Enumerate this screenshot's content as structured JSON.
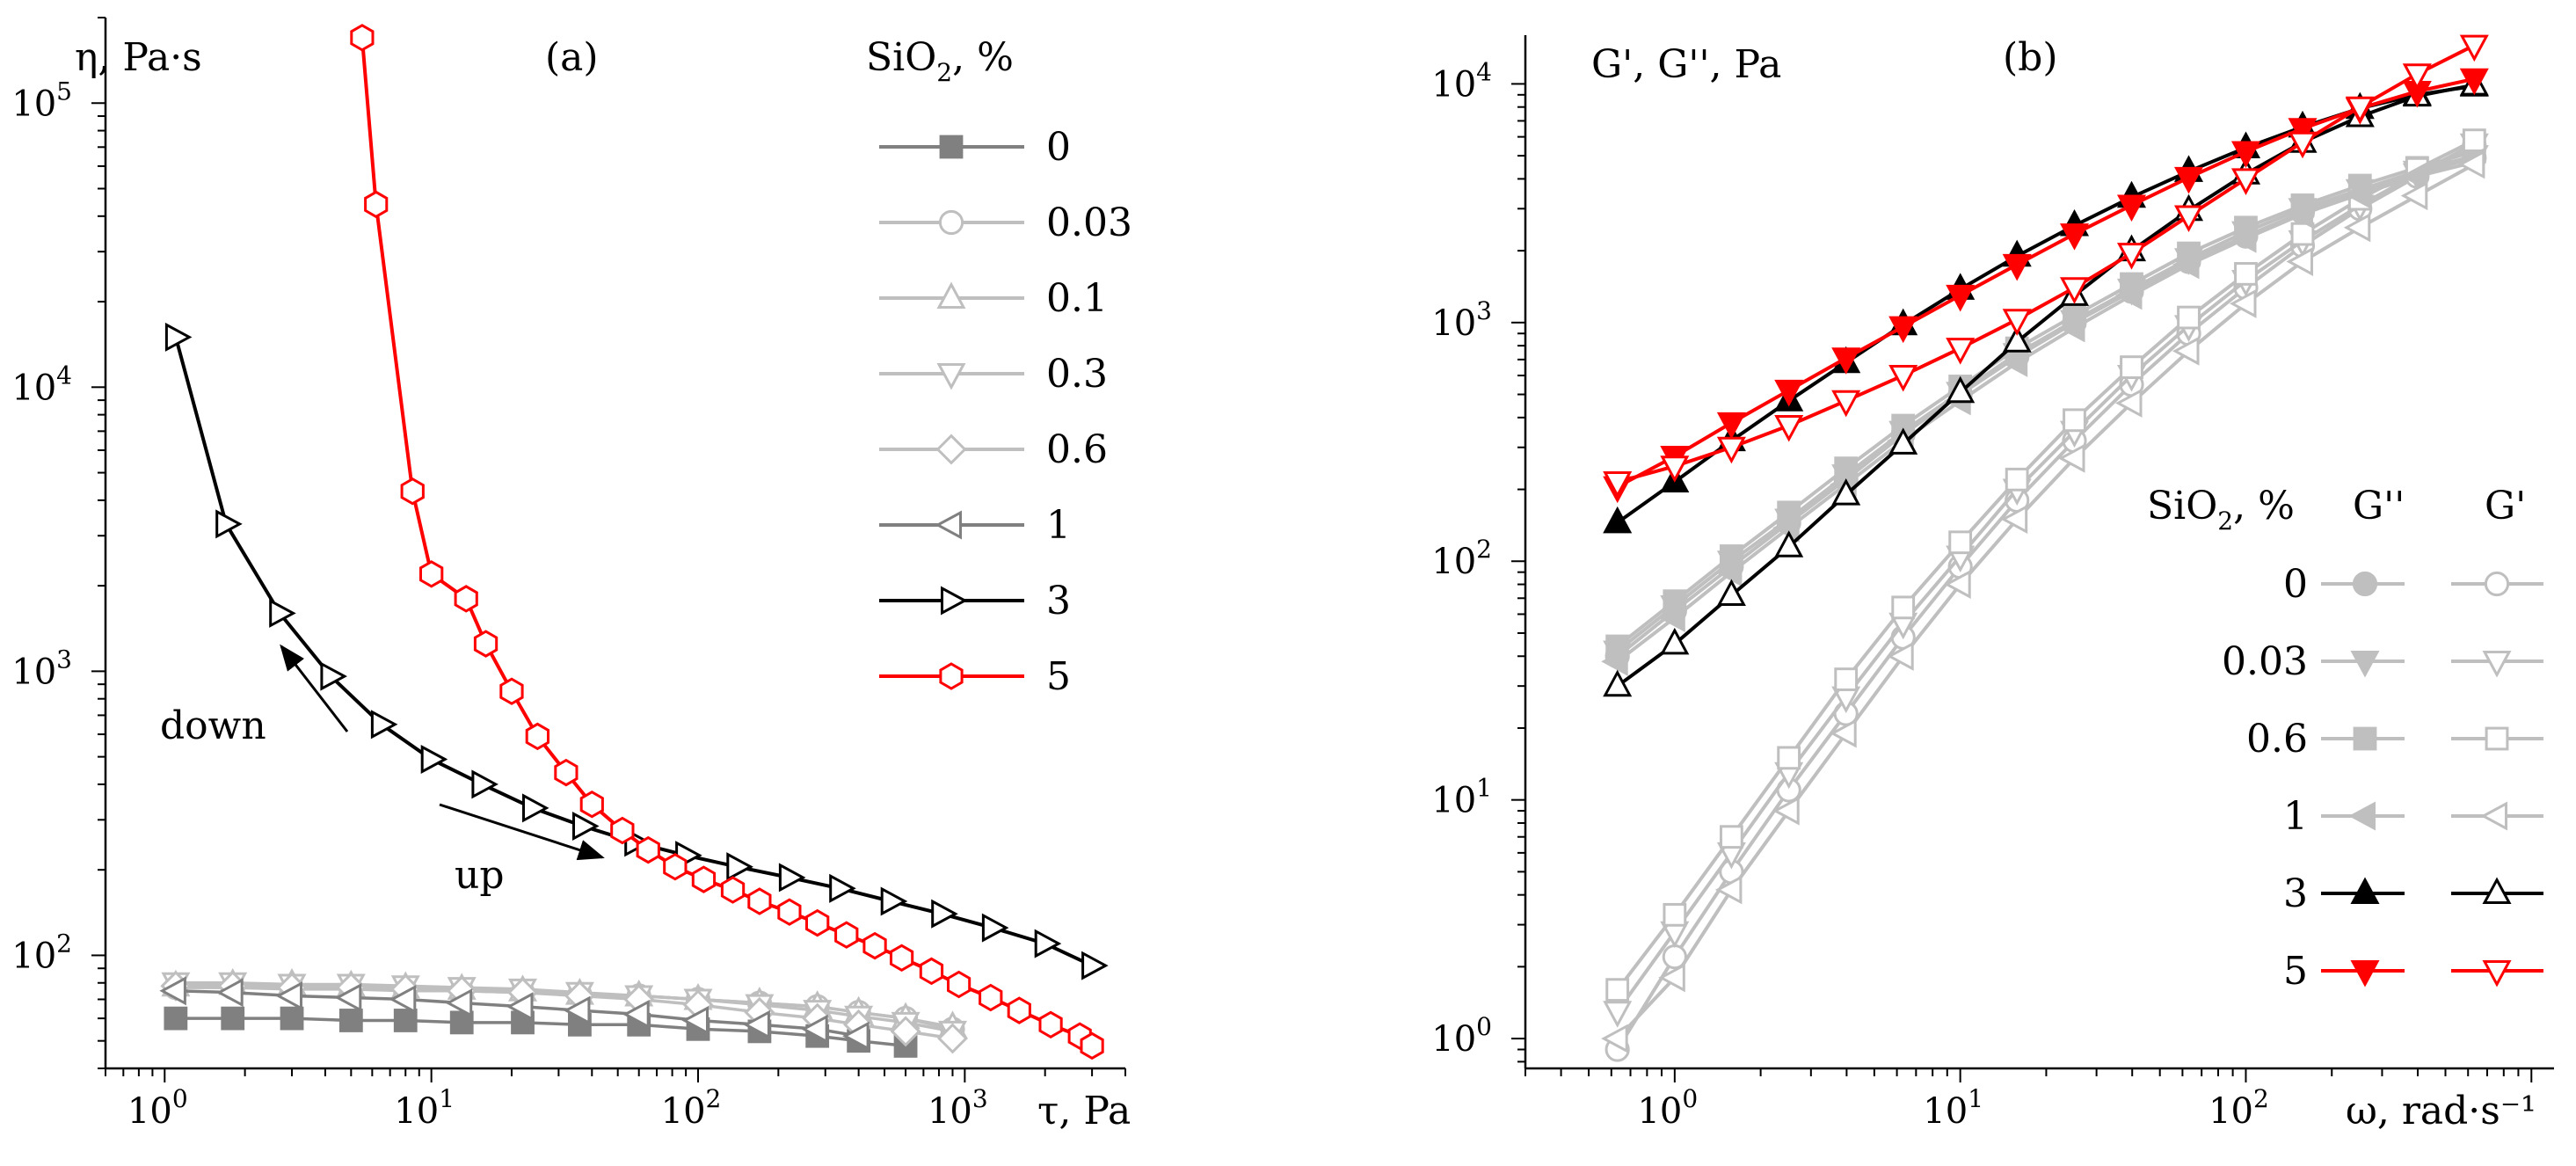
{
  "figure": {
    "panel_a_label": "(a)",
    "panel_b_label": "(b)"
  },
  "chart_data": [
    {
      "panel": "(a)",
      "type": "line",
      "xscale": "log",
      "yscale": "log",
      "xlabel": "τ, Pa",
      "ylabel": "η, Pa·s",
      "xlim": [
        0.6,
        4000
      ],
      "ylim": [
        40,
        200000
      ],
      "xticks": [
        {
          "value": 1,
          "base": "10",
          "exp": "0"
        },
        {
          "value": 10,
          "base": "10",
          "exp": "1"
        },
        {
          "value": 100,
          "base": "10",
          "exp": "2"
        },
        {
          "value": 1000,
          "base": "10",
          "exp": "3"
        }
      ],
      "yticks": [
        {
          "value": 100,
          "base": "10",
          "exp": "2"
        },
        {
          "value": 1000,
          "base": "10",
          "exp": "3"
        },
        {
          "value": 10000,
          "base": "10",
          "exp": "4"
        },
        {
          "value": 100000,
          "base": "10",
          "exp": "5"
        }
      ],
      "legend_title": {
        "main": "SiO",
        "sub": "2",
        "rest": ", %"
      },
      "annotations": {
        "down": "down",
        "up": "up"
      },
      "series": [
        {
          "name": "0",
          "color": "#808080",
          "marker": "square",
          "filled": true,
          "x": [
            1.1,
            1.8,
            3,
            5,
            8,
            13,
            22,
            36,
            60,
            100,
            170,
            280,
            400,
            600
          ],
          "y": [
            60,
            60,
            60,
            59,
            59,
            58,
            58,
            57,
            57,
            55,
            54,
            52,
            50,
            48
          ]
        },
        {
          "name": "0.03",
          "color": "#bfbfbf",
          "marker": "circle",
          "filled": false,
          "x": [
            1.1,
            1.8,
            3,
            5,
            8,
            13,
            22,
            36,
            60,
            100,
            170,
            280,
            400,
            600,
            900
          ],
          "y": [
            77,
            77,
            76,
            76,
            75,
            75,
            74,
            73,
            72,
            70,
            68,
            66,
            63,
            60,
            55
          ]
        },
        {
          "name": "0.1",
          "color": "#bfbfbf",
          "marker": "triangle-up",
          "filled": false,
          "x": [
            1.1,
            1.8,
            3,
            5,
            8,
            13,
            22,
            36,
            60,
            100,
            170,
            280,
            400,
            600,
            900
          ],
          "y": [
            78,
            79,
            79,
            78,
            77,
            76,
            75,
            73,
            72,
            70,
            68,
            66,
            63,
            60,
            56
          ]
        },
        {
          "name": "0.3",
          "color": "#bfbfbf",
          "marker": "triangle-down",
          "filled": false,
          "x": [
            1.1,
            1.8,
            3,
            5,
            8,
            13,
            22,
            36,
            60,
            100,
            170,
            280,
            400,
            600,
            900
          ],
          "y": [
            80,
            80,
            79,
            79,
            78,
            77,
            76,
            74,
            72,
            70,
            67,
            64,
            61,
            58,
            54
          ]
        },
        {
          "name": "0.6",
          "color": "#bfbfbf",
          "marker": "diamond",
          "filled": false,
          "x": [
            1.1,
            1.8,
            3,
            5,
            8,
            13,
            22,
            36,
            60,
            100,
            170,
            280,
            400,
            600,
            900
          ],
          "y": [
            78,
            78,
            77,
            77,
            76,
            75,
            74,
            72,
            70,
            67,
            63,
            60,
            57,
            54,
            51
          ]
        },
        {
          "name": "1",
          "color": "#808080",
          "marker": "triangle-left",
          "filled": false,
          "x": [
            1.1,
            1.8,
            3,
            5,
            8,
            13,
            22,
            36,
            60,
            100,
            170,
            280,
            400
          ],
          "y": [
            75,
            74,
            72,
            71,
            70,
            68,
            66,
            64,
            62,
            59,
            57,
            55,
            52
          ]
        },
        {
          "name": "3",
          "color": "#000000",
          "marker": "triangle-right",
          "filled": false,
          "x": [
            1.1,
            1.7,
            2.7,
            4.2,
            6.5,
            10,
            15.5,
            24,
            37,
            58,
            90,
            140,
            220,
            340,
            530,
            820,
            1270,
            2000,
            3000
          ],
          "y": [
            15000,
            3300,
            1600,
            960,
            650,
            490,
            400,
            330,
            285,
            250,
            225,
            205,
            188,
            172,
            155,
            140,
            125,
            110,
            92
          ]
        },
        {
          "name": "5",
          "color": "#ff0000",
          "marker": "hexagon",
          "filled": false,
          "x": [
            5.5,
            6.2,
            8.5,
            10,
            13.5,
            16,
            20,
            25,
            32,
            40,
            52,
            65,
            82,
            105,
            135,
            170,
            220,
            280,
            360,
            460,
            580,
            750,
            950,
            1250,
            1600,
            2100,
            2700,
            3000
          ],
          "y": [
            170000,
            44000,
            4300,
            2200,
            1800,
            1250,
            850,
            590,
            440,
            340,
            275,
            235,
            205,
            185,
            170,
            155,
            142,
            130,
            118,
            108,
            98,
            88,
            79,
            71,
            64,
            57,
            52,
            48
          ]
        }
      ]
    },
    {
      "panel": "(b)",
      "type": "line",
      "xscale": "log",
      "yscale": "log",
      "xlabel": "ω, rad·s⁻¹",
      "ylabel": "G', G'', Pa",
      "xlim": [
        0.3,
        1200
      ],
      "ylim": [
        0.75,
        16000
      ],
      "xticks": [
        {
          "value": 1,
          "base": "10",
          "exp": "0"
        },
        {
          "value": 10,
          "base": "10",
          "exp": "1"
        },
        {
          "value": 100,
          "base": "10",
          "exp": "2"
        }
      ],
      "yticks": [
        {
          "value": 1,
          "base": "10",
          "exp": "0"
        },
        {
          "value": 10,
          "base": "10",
          "exp": "1"
        },
        {
          "value": 100,
          "base": "10",
          "exp": "2"
        },
        {
          "value": 1000,
          "base": "10",
          "exp": "3"
        },
        {
          "value": 10000,
          "base": "10",
          "exp": "4"
        }
      ],
      "legend_title": {
        "main": "SiO",
        "sub": "2",
        "rest": ", %",
        "col1": "G''",
        "col2": "G'"
      },
      "x": [
        0.63,
        1.0,
        1.58,
        2.51,
        3.98,
        6.31,
        10,
        15.8,
        25.1,
        39.8,
        63.1,
        100,
        158,
        251,
        398,
        631
      ],
      "series": [
        {
          "name": "0",
          "color": "#bfbfbf",
          "marker": "circle",
          "Gpp": [
            40,
            62,
            95,
            145,
            220,
            340,
            500,
            720,
            1000,
            1350,
            1800,
            2300,
            2900,
            3500,
            4200,
            4900
          ],
          "Gp": [
            0.9,
            2.2,
            5,
            11,
            23,
            48,
            95,
            180,
            320,
            550,
            900,
            1400,
            2100,
            3000,
            4100,
            5500
          ]
        },
        {
          "name": "0.03",
          "color": "#bfbfbf",
          "marker": "triangle-down",
          "Gpp": [
            42,
            65,
            100,
            150,
            230,
            350,
            510,
            740,
            1020,
            1380,
            1850,
            2400,
            3000,
            3600,
            4300,
            5000
          ],
          "Gp": [
            1.3,
            2.8,
            6,
            13,
            27,
            55,
            105,
            200,
            350,
            600,
            970,
            1500,
            2200,
            3100,
            4200,
            5600
          ]
        },
        {
          "name": "0.6",
          "color": "#bfbfbf",
          "marker": "square",
          "Gpp": [
            44,
            68,
            105,
            160,
            245,
            370,
            540,
            780,
            1070,
            1450,
            1950,
            2500,
            3100,
            3750,
            4450,
            5200
          ],
          "Gp": [
            1.6,
            3.3,
            7,
            15,
            32,
            64,
            120,
            220,
            390,
            650,
            1050,
            1600,
            2350,
            3300,
            4400,
            5800
          ]
        },
        {
          "name": "1",
          "color": "#bfbfbf",
          "marker": "triangle-left",
          "Gpp": [
            38,
            58,
            90,
            138,
            210,
            320,
            470,
            680,
            950,
            1300,
            1750,
            2250,
            2850,
            3450,
            4100,
            4700
          ],
          "Gp": [
            1.0,
            1.8,
            4.2,
            9,
            19,
            40,
            80,
            150,
            270,
            460,
            760,
            1200,
            1800,
            2500,
            3400,
            4600
          ]
        },
        {
          "name": "3",
          "color": "#000000",
          "marker": "triangle-up",
          "Gpp": [
            145,
            215,
            320,
            470,
            680,
            980,
            1380,
            1900,
            2550,
            3350,
            4300,
            5400,
            6600,
            7900,
            9000,
            9800
          ],
          "Gp": [
            30,
            45,
            72,
            115,
            190,
            310,
            510,
            830,
            1300,
            2000,
            2950,
            4200,
            5700,
            7300,
            8900,
            9900
          ]
        },
        {
          "name": "5",
          "color": "#ff0000",
          "marker": "triangle-down",
          "Gpp": [
            205,
            275,
            380,
            520,
            710,
            960,
            1300,
            1750,
            2350,
            3100,
            4050,
            5200,
            6500,
            7900,
            9300,
            10500
          ],
          "Gp": [
            215,
            250,
            300,
            370,
            470,
            600,
            780,
            1030,
            1400,
            1950,
            2800,
            4000,
            5700,
            8000,
            11000,
            14500
          ]
        }
      ]
    }
  ]
}
